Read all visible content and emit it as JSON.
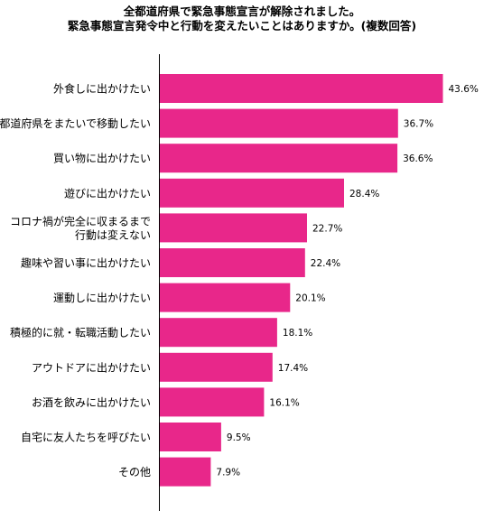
{
  "title_lines": [
    "全都道府県で緊急事態宣言が解除されました。",
    "緊急事態宣言発令中と行動を変えたいことはありますか。(複数回答)"
  ],
  "colors": {
    "bar": "#e8278a",
    "axis": "#000000",
    "text": "#000000"
  },
  "chart_data": {
    "type": "bar",
    "orientation": "horizontal",
    "title": "全都道府県で緊急事態宣言が解除されました。緊急事態宣言発令中と行動を変えたいことはありますか。(複数回答)",
    "categories": [
      "外食しに出かけたい",
      "都道府県をまたいで移動したい",
      "買い物に出かけたい",
      "遊びに出かけたい",
      "コロナ禍が完全に収まるまで\n行動は変えない",
      "趣味や習い事に出かけたい",
      "運動しに出かけたい",
      "積極的に就・転職活動したい",
      "アウトドアに出かけたい",
      "お酒を飲みに出かけたい",
      "自宅に友人たちを呼びたい",
      "その他"
    ],
    "values": [
      43.6,
      36.7,
      36.6,
      28.4,
      22.7,
      22.4,
      20.1,
      18.1,
      17.4,
      16.1,
      9.5,
      7.9
    ],
    "value_labels": [
      "43.6%",
      "36.7%",
      "36.6%",
      "28.4%",
      "22.7%",
      "22.4%",
      "20.1%",
      "18.1%",
      "17.4%",
      "16.1%",
      "9.5%",
      "7.9%"
    ],
    "unit": "%",
    "xlim": [
      0,
      50
    ],
    "grid": false,
    "legend": "none"
  }
}
